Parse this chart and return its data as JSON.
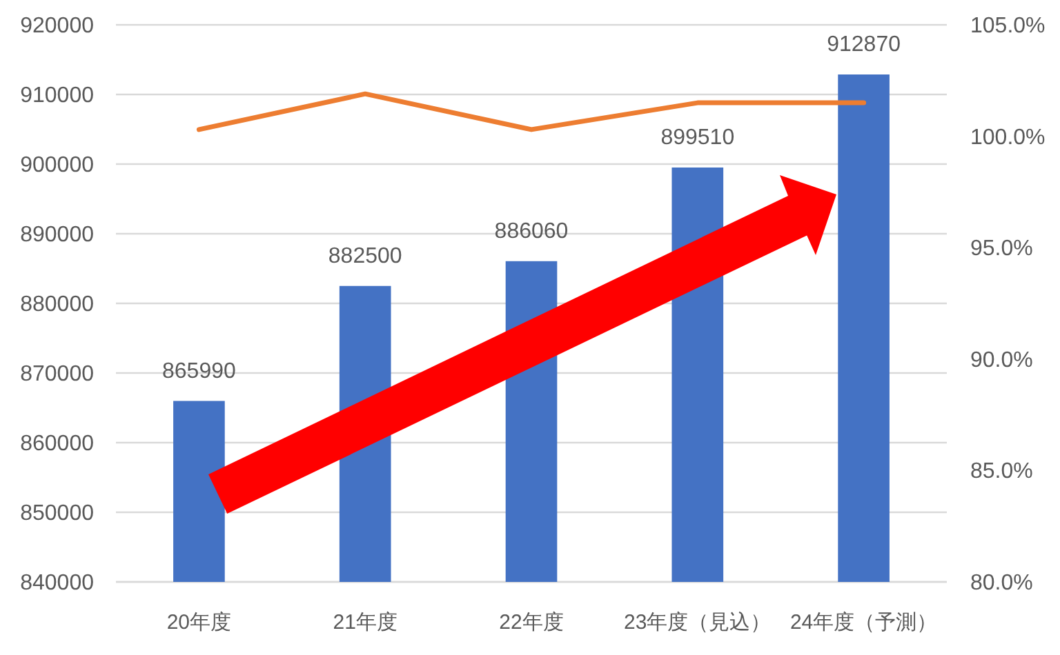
{
  "chart_data": {
    "type": "bar",
    "categories": [
      "20年度",
      "21年度",
      "22年度",
      "23年度（見込）",
      "24年度（予測）"
    ],
    "series": [
      {
        "color": "#4472c4",
        "values": [
          865990,
          882500,
          886060,
          899510,
          912870
        ],
        "value_labels": [
          "865990",
          "882500",
          "886060",
          "899510",
          "912870"
        ]
      },
      {
        "type": "line",
        "axis": "y2",
        "color": "#ed7d31",
        "values": [
          100.3,
          101.9,
          100.3,
          101.5,
          101.5
        ]
      }
    ],
    "ylim": [
      840000,
      920000
    ],
    "yticks": [
      840000,
      850000,
      860000,
      870000,
      880000,
      890000,
      900000,
      910000,
      920000
    ],
    "y2lim": [
      80,
      105
    ],
    "y2ticks": [
      {
        "value": 80,
        "label": "80.0%"
      },
      {
        "value": 85,
        "label": "85.0%"
      },
      {
        "value": 90,
        "label": "90.0%"
      },
      {
        "value": 95,
        "label": "95.0%"
      },
      {
        "value": 100,
        "label": "100.0%"
      },
      {
        "value": 105,
        "label": "105.0%"
      }
    ],
    "grid": "y"
  }
}
